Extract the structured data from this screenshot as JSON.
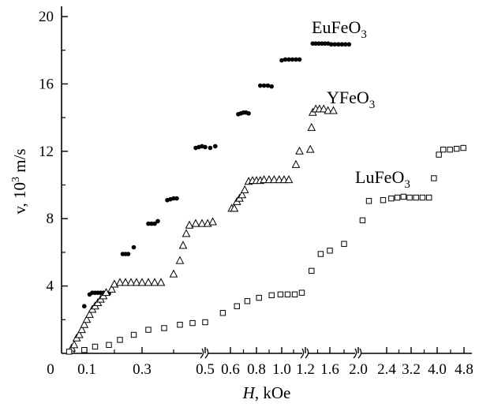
{
  "chart_data": {
    "type": "scatter",
    "title": "",
    "xlabel_italic": "H",
    "xlabel_rest": ", kOe",
    "ylabel_main": "v, 10",
    "ylabel_exp": "3",
    "ylabel_unit": " m/s",
    "x_scale": "piecewise (axis broken at 0.5, 1.2 and 2.0 kOe)",
    "grid": false,
    "ylim": [
      0,
      21
    ],
    "y_ticks": [
      "4",
      "8",
      "12",
      "16",
      "20"
    ],
    "x_origin_label": "0",
    "x_ticks": [
      "0.1",
      "0.3",
      "0.5",
      "0.6",
      "0.8",
      "1.0",
      "1.2",
      "1.6",
      "2.0",
      "2.4",
      "3.2",
      "4.0",
      "4.8"
    ],
    "x_tick_positions_kOe": [
      0.1,
      0.3,
      0.5,
      0.6,
      0.8,
      1.0,
      1.2,
      1.6,
      2.0,
      2.4,
      3.2,
      4.0,
      4.8
    ],
    "series": [
      {
        "name_base": "EuFeO",
        "name_sub": "3",
        "marker": "filled-circle",
        "points": [
          [
            0.06,
            0.9
          ],
          [
            0.09,
            2.8
          ],
          [
            0.11,
            3.5
          ],
          [
            0.12,
            3.6
          ],
          [
            0.13,
            3.6
          ],
          [
            0.14,
            3.6
          ],
          [
            0.15,
            3.6
          ],
          [
            0.16,
            3.6
          ],
          [
            0.17,
            3.6
          ],
          [
            0.18,
            3.55
          ],
          [
            0.23,
            5.9
          ],
          [
            0.24,
            5.9
          ],
          [
            0.25,
            5.9
          ],
          [
            0.27,
            6.3
          ],
          [
            0.32,
            7.7
          ],
          [
            0.33,
            7.7
          ],
          [
            0.34,
            7.7
          ],
          [
            0.35,
            7.85
          ],
          [
            0.38,
            9.1
          ],
          [
            0.39,
            9.15
          ],
          [
            0.4,
            9.2
          ],
          [
            0.41,
            9.2
          ],
          [
            0.47,
            12.2
          ],
          [
            0.48,
            12.25
          ],
          [
            0.49,
            12.3
          ],
          [
            0.5,
            12.25
          ],
          [
            0.52,
            12.2
          ],
          [
            0.54,
            12.3
          ],
          [
            0.66,
            14.2
          ],
          [
            0.68,
            14.25
          ],
          [
            0.7,
            14.3
          ],
          [
            0.72,
            14.3
          ],
          [
            0.74,
            14.25
          ],
          [
            0.83,
            15.9
          ],
          [
            0.86,
            15.9
          ],
          [
            0.89,
            15.9
          ],
          [
            0.92,
            15.85
          ],
          [
            1.0,
            17.4
          ],
          [
            1.03,
            17.45
          ],
          [
            1.06,
            17.45
          ],
          [
            1.09,
            17.45
          ],
          [
            1.12,
            17.45
          ],
          [
            1.15,
            17.45
          ],
          [
            1.32,
            18.4
          ],
          [
            1.37,
            18.4
          ],
          [
            1.42,
            18.4
          ],
          [
            1.47,
            18.4
          ],
          [
            1.52,
            18.4
          ],
          [
            1.57,
            18.4
          ],
          [
            1.62,
            18.35
          ],
          [
            1.67,
            18.35
          ],
          [
            1.72,
            18.35
          ],
          [
            1.77,
            18.35
          ],
          [
            1.82,
            18.35
          ],
          [
            1.87,
            18.35
          ]
        ]
      },
      {
        "name_base": "YFeO",
        "name_sub": "3",
        "marker": "open-triangle",
        "points": [
          [
            0.04,
            0.3
          ],
          [
            0.05,
            0.5
          ],
          [
            0.06,
            0.9
          ],
          [
            0.07,
            1.1
          ],
          [
            0.08,
            1.4
          ],
          [
            0.09,
            1.7
          ],
          [
            0.1,
            2.0
          ],
          [
            0.11,
            2.3
          ],
          [
            0.12,
            2.6
          ],
          [
            0.13,
            2.8
          ],
          [
            0.14,
            3.0
          ],
          [
            0.15,
            3.2
          ],
          [
            0.16,
            3.4
          ],
          [
            0.17,
            3.6
          ],
          [
            0.19,
            3.8
          ],
          [
            0.2,
            4.1
          ],
          [
            0.22,
            4.2
          ],
          [
            0.24,
            4.2
          ],
          [
            0.26,
            4.2
          ],
          [
            0.28,
            4.2
          ],
          [
            0.3,
            4.2
          ],
          [
            0.32,
            4.2
          ],
          [
            0.34,
            4.2
          ],
          [
            0.36,
            4.2
          ],
          [
            0.4,
            4.7
          ],
          [
            0.42,
            5.5
          ],
          [
            0.43,
            6.4
          ],
          [
            0.44,
            7.1
          ],
          [
            0.45,
            7.6
          ],
          [
            0.47,
            7.7
          ],
          [
            0.49,
            7.7
          ],
          [
            0.51,
            7.7
          ],
          [
            0.53,
            7.8
          ],
          [
            0.61,
            8.6
          ],
          [
            0.63,
            8.6
          ],
          [
            0.65,
            9.0
          ],
          [
            0.67,
            9.2
          ],
          [
            0.69,
            9.4
          ],
          [
            0.71,
            9.7
          ],
          [
            0.74,
            10.2
          ],
          [
            0.77,
            10.25
          ],
          [
            0.8,
            10.25
          ],
          [
            0.83,
            10.25
          ],
          [
            0.86,
            10.3
          ],
          [
            0.9,
            10.3
          ],
          [
            0.94,
            10.3
          ],
          [
            0.98,
            10.3
          ],
          [
            1.02,
            10.3
          ],
          [
            1.06,
            10.3
          ],
          [
            1.12,
            11.2
          ],
          [
            1.15,
            12.0
          ],
          [
            1.28,
            12.1
          ],
          [
            1.3,
            13.4
          ],
          [
            1.32,
            14.3
          ],
          [
            1.37,
            14.5
          ],
          [
            1.43,
            14.5
          ],
          [
            1.5,
            14.5
          ],
          [
            1.57,
            14.4
          ],
          [
            1.65,
            14.4
          ]
        ]
      },
      {
        "name_base": "LuFeO",
        "name_sub": "3",
        "marker": "open-square",
        "points": [
          [
            0.03,
            0.1
          ],
          [
            0.09,
            0.2
          ],
          [
            0.13,
            0.4
          ],
          [
            0.18,
            0.5
          ],
          [
            0.22,
            0.8
          ],
          [
            0.27,
            1.1
          ],
          [
            0.32,
            1.4
          ],
          [
            0.37,
            1.5
          ],
          [
            0.42,
            1.7
          ],
          [
            0.46,
            1.8
          ],
          [
            0.5,
            1.85
          ],
          [
            0.57,
            2.4
          ],
          [
            0.65,
            2.8
          ],
          [
            0.73,
            3.1
          ],
          [
            0.82,
            3.3
          ],
          [
            0.92,
            3.45
          ],
          [
            0.99,
            3.5
          ],
          [
            1.05,
            3.5
          ],
          [
            1.11,
            3.5
          ],
          [
            1.17,
            3.6
          ],
          [
            1.3,
            4.9
          ],
          [
            1.45,
            5.9
          ],
          [
            1.6,
            6.1
          ],
          [
            1.8,
            6.5
          ],
          [
            2.06,
            7.9
          ],
          [
            2.15,
            9.05
          ],
          [
            2.35,
            9.1
          ],
          [
            2.55,
            9.2
          ],
          [
            2.75,
            9.25
          ],
          [
            2.95,
            9.3
          ],
          [
            3.15,
            9.25
          ],
          [
            3.35,
            9.25
          ],
          [
            3.55,
            9.25
          ],
          [
            3.75,
            9.25
          ],
          [
            3.9,
            10.4
          ],
          [
            4.05,
            11.8
          ],
          [
            4.18,
            12.1
          ],
          [
            4.38,
            12.1
          ],
          [
            4.58,
            12.15
          ],
          [
            4.78,
            12.2
          ]
        ]
      }
    ]
  }
}
